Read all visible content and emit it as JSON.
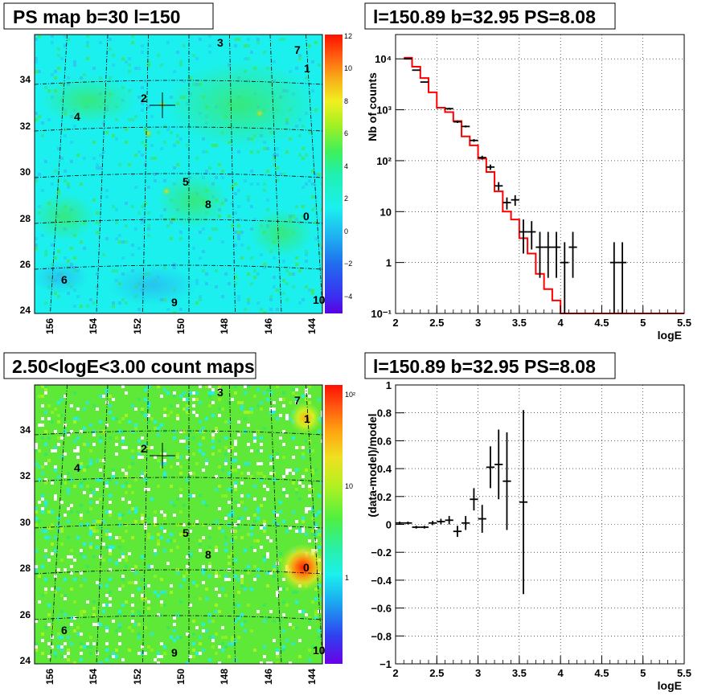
{
  "chart_data": [
    {
      "type": "heatmap",
      "title": "PS map b=30 l=150",
      "x_ticks": [
        "156",
        "154",
        "152",
        "150",
        "148",
        "146",
        "144"
      ],
      "y_ticks": [
        "24",
        "26",
        "28",
        "30",
        "32",
        "34"
      ],
      "colorbar_ticks": [
        "12",
        "10",
        "8",
        "6",
        "4",
        "2",
        "0",
        "−2",
        "−4"
      ],
      "colorbar_range": [
        -5,
        12
      ],
      "sources": [
        "0",
        "1",
        "2",
        "3",
        "4",
        "5",
        "6",
        "7",
        "8",
        "9",
        "10"
      ],
      "marker": {
        "l": 150.89,
        "b": 32.95
      },
      "grid": "dashed"
    },
    {
      "type": "line",
      "title": "l=150.89 b=32.95 PS=8.08",
      "xlabel": "logE",
      "ylabel": "Nb of counts",
      "yscale": "log",
      "xlim": [
        2,
        5.5
      ],
      "ylim": [
        0.1,
        30000
      ],
      "x_ticks": [
        "2",
        "2.5",
        "3",
        "3.5",
        "4",
        "4.5",
        "5",
        "5.5"
      ],
      "y_ticks": [
        "10⁻¹",
        "1",
        "10",
        "10²",
        "10³",
        "10⁴"
      ],
      "series": [
        {
          "kind": "data",
          "x": [
            2.15,
            2.25,
            2.35,
            2.65,
            2.75,
            2.85,
            2.95,
            3.05,
            3.15,
            3.25,
            3.35,
            3.45,
            3.55,
            3.65,
            3.75,
            3.85,
            3.95,
            4.05,
            4.15,
            4.65,
            4.75
          ],
          "y": [
            10000,
            6000,
            3500,
            1050,
            580,
            470,
            250,
            115,
            75,
            32,
            15,
            17,
            4,
            4,
            2,
            2,
            2,
            1,
            2,
            1,
            1
          ],
          "ylo": [
            9850,
            5880,
            3440,
            1000,
            550,
            450,
            235,
            105,
            66,
            26,
            11,
            13,
            1.5,
            1.8,
            0.5,
            0.5,
            0.5,
            0.1,
            0.5,
            0.1,
            0.1
          ],
          "yhi": [
            10150,
            6120,
            3560,
            1100,
            610,
            490,
            265,
            125,
            84,
            38,
            19,
            21,
            7,
            6.5,
            4,
            4,
            4,
            2.5,
            4,
            2.5,
            2.5
          ]
        },
        {
          "kind": "model",
          "color": "#ff0000",
          "edges": [
            2.1,
            2.2,
            2.3,
            2.4,
            2.5,
            2.6,
            2.7,
            2.8,
            2.9,
            3.0,
            3.1,
            3.2,
            3.3,
            3.4,
            3.5,
            3.6,
            3.7,
            3.8,
            3.9,
            4.0,
            5.5
          ],
          "values": [
            10500,
            7000,
            4200,
            2200,
            1100,
            900,
            600,
            300,
            200,
            110,
            60,
            25,
            10,
            7,
            3,
            1.5,
            0.6,
            0.3,
            0.18,
            0.1
          ]
        }
      ],
      "grid": true
    },
    {
      "type": "heatmap",
      "title": "2.50<logE<3.00 count maps",
      "x_ticks": [
        "156",
        "154",
        "152",
        "150",
        "148",
        "146",
        "144"
      ],
      "y_ticks": [
        "24",
        "26",
        "28",
        "30",
        "32",
        "34"
      ],
      "colorbar_ticks": [
        "10²",
        "10",
        "1"
      ],
      "colorbar_scale": "log",
      "sources": [
        "0",
        "1",
        "2",
        "3",
        "4",
        "5",
        "6",
        "7",
        "8",
        "9",
        "10"
      ],
      "marker": {
        "l": 150.89,
        "b": 32.95
      },
      "grid": "dashed"
    },
    {
      "type": "scatter",
      "title": "l=150.89 b=32.95 PS=8.08",
      "xlabel": "logE",
      "ylabel": "(data-model)/model",
      "xlim": [
        2,
        5.5
      ],
      "ylim": [
        -1,
        1
      ],
      "x_ticks": [
        "2",
        "2.5",
        "3",
        "3.5",
        "4",
        "4.5",
        "5",
        "5.5"
      ],
      "y_ticks": [
        "−1",
        "−0.8",
        "−0.6",
        "−0.4",
        "−0.2",
        "0",
        "0.2",
        "0.4",
        "0.6",
        "0.8",
        "1"
      ],
      "x": [
        2.05,
        2.15,
        2.25,
        2.35,
        2.45,
        2.55,
        2.65,
        2.75,
        2.85,
        2.95,
        3.05,
        3.15,
        3.25,
        3.35,
        3.55
      ],
      "y": [
        0.01,
        0.01,
        -0.02,
        -0.02,
        0.01,
        0.02,
        0.03,
        -0.05,
        0.01,
        0.18,
        0.04,
        0.41,
        0.43,
        0.31,
        0.16
      ],
      "err": [
        0.01,
        0.01,
        0.01,
        0.01,
        0.015,
        0.02,
        0.03,
        0.04,
        0.05,
        0.08,
        0.1,
        0.15,
        0.25,
        0.35,
        0.66
      ],
      "grid": true
    }
  ],
  "colors": {
    "cyan": "#1bf0ee",
    "green": "#2fe96c",
    "red": "#ff2000",
    "model": "#ff0000"
  }
}
